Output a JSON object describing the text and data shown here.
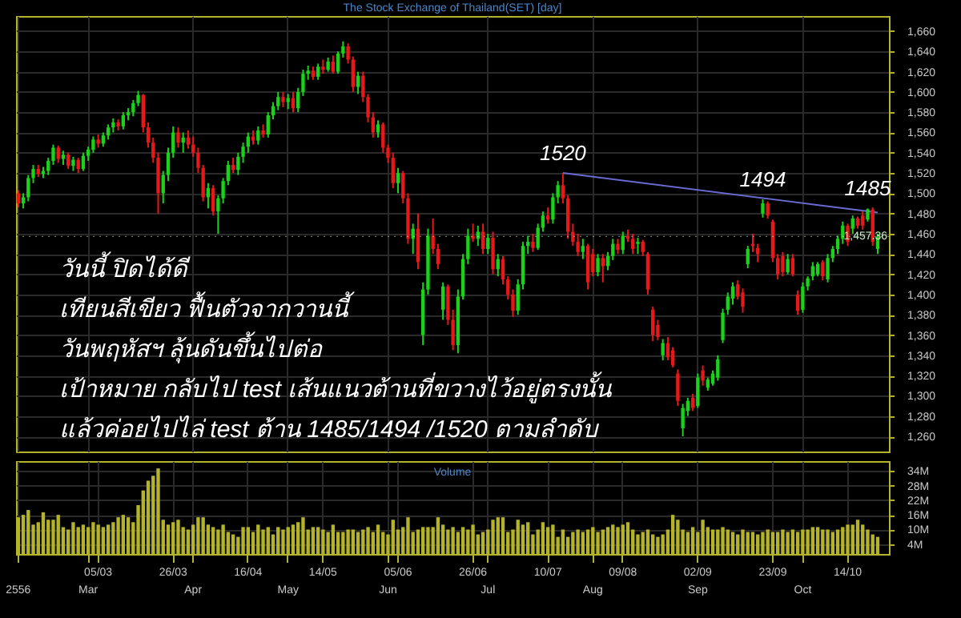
{
  "chart_data": [
    {
      "type": "candlestick",
      "title": "The Stock Exchange of Thailand(SET) [day]",
      "categories": [
        "2556",
        null,
        null,
        null,
        null,
        null,
        null,
        null,
        null,
        null,
        null,
        null,
        null,
        null,
        "Mar",
        null,
        null,
        null,
        null,
        null,
        null,
        null,
        null,
        null,
        null,
        null,
        null,
        null,
        null,
        null,
        null,
        null,
        null,
        null,
        null,
        "Apr",
        null,
        null,
        null,
        null,
        null,
        null,
        null,
        null,
        null,
        null,
        null,
        null,
        null,
        null,
        null,
        null,
        null,
        null,
        "May",
        null,
        null,
        null,
        null,
        null,
        null,
        null,
        null,
        null,
        null,
        null,
        null,
        null,
        null,
        null,
        null,
        null,
        null,
        null,
        "Jun",
        null,
        null,
        null,
        null,
        null,
        null,
        null,
        null,
        null,
        null,
        null,
        null,
        null,
        null,
        null,
        null,
        null,
        null,
        null,
        "Jul",
        null,
        null,
        null,
        null,
        null,
        null,
        null,
        null,
        null,
        null,
        null,
        null,
        null,
        null,
        null,
        null,
        null,
        null,
        null,
        null,
        "Aug",
        null,
        null,
        null,
        null,
        null,
        null,
        null,
        null,
        null,
        null,
        null,
        null,
        null,
        null,
        null,
        null,
        null,
        null,
        null,
        null,
        "Sep",
        null,
        null,
        null,
        null,
        null,
        null,
        null,
        null,
        null,
        null,
        null,
        null,
        null,
        null,
        null,
        null,
        null,
        null,
        null,
        null,
        "Oct",
        null,
        null,
        null,
        null,
        null,
        null,
        null,
        null,
        null,
        null,
        null,
        null,
        null,
        null,
        null
      ],
      "ohlc": [
        [
          1500,
          1503,
          1486,
          1490
        ],
        [
          1490,
          1500,
          1485,
          1496
        ],
        [
          1496,
          1518,
          1492,
          1515
        ],
        [
          1515,
          1528,
          1510,
          1524
        ],
        [
          1524,
          1528,
          1516,
          1519
        ],
        [
          1519,
          1526,
          1515,
          1522
        ],
        [
          1522,
          1535,
          1518,
          1532
        ],
        [
          1532,
          1548,
          1528,
          1545
        ],
        [
          1545,
          1547,
          1530,
          1534
        ],
        [
          1534,
          1542,
          1528,
          1538
        ],
        [
          1538,
          1540,
          1524,
          1527
        ],
        [
          1527,
          1536,
          1522,
          1533
        ],
        [
          1533,
          1535,
          1520,
          1524
        ],
        [
          1524,
          1540,
          1522,
          1537
        ],
        [
          1537,
          1546,
          1532,
          1543
        ],
        [
          1543,
          1556,
          1540,
          1553
        ],
        [
          1553,
          1558,
          1545,
          1549
        ],
        [
          1549,
          1560,
          1546,
          1557
        ],
        [
          1557,
          1568,
          1553,
          1565
        ],
        [
          1565,
          1574,
          1560,
          1570
        ],
        [
          1570,
          1573,
          1562,
          1566
        ],
        [
          1566,
          1580,
          1563,
          1577
        ],
        [
          1577,
          1584,
          1572,
          1580
        ],
        [
          1580,
          1592,
          1576,
          1589
        ],
        [
          1589,
          1601,
          1586,
          1597
        ],
        [
          1597,
          1598,
          1560,
          1565
        ],
        [
          1565,
          1570,
          1545,
          1550
        ],
        [
          1550,
          1555,
          1530,
          1535
        ],
        [
          1535,
          1540,
          1480,
          1500
        ],
        [
          1500,
          1522,
          1490,
          1518
        ],
        [
          1518,
          1545,
          1512,
          1540
        ],
        [
          1540,
          1566,
          1535,
          1560
        ],
        [
          1560,
          1565,
          1545,
          1550
        ],
        [
          1550,
          1560,
          1540,
          1555
        ],
        [
          1555,
          1562,
          1544,
          1548
        ],
        [
          1548,
          1556,
          1536,
          1540
        ],
        [
          1540,
          1545,
          1520,
          1525
        ],
        [
          1525,
          1528,
          1492,
          1496
        ],
        [
          1496,
          1510,
          1485,
          1505
        ],
        [
          1505,
          1508,
          1478,
          1482
        ],
        [
          1482,
          1498,
          1460,
          1495
        ],
        [
          1495,
          1515,
          1490,
          1512
        ],
        [
          1512,
          1532,
          1508,
          1528
        ],
        [
          1528,
          1535,
          1520,
          1523
        ],
        [
          1523,
          1540,
          1518,
          1536
        ],
        [
          1536,
          1550,
          1530,
          1546
        ],
        [
          1546,
          1560,
          1540,
          1556
        ],
        [
          1556,
          1562,
          1548,
          1552
        ],
        [
          1552,
          1566,
          1548,
          1562
        ],
        [
          1562,
          1568,
          1555,
          1558
        ],
        [
          1558,
          1580,
          1555,
          1577
        ],
        [
          1577,
          1590,
          1573,
          1586
        ],
        [
          1586,
          1600,
          1582,
          1595
        ],
        [
          1595,
          1600,
          1585,
          1590
        ],
        [
          1590,
          1598,
          1583,
          1594
        ],
        [
          1594,
          1600,
          1580,
          1584
        ],
        [
          1584,
          1604,
          1580,
          1600
        ],
        [
          1600,
          1622,
          1596,
          1618
        ],
        [
          1618,
          1626,
          1612,
          1621
        ],
        [
          1621,
          1625,
          1612,
          1615
        ],
        [
          1615,
          1628,
          1612,
          1625
        ],
        [
          1625,
          1632,
          1618,
          1622
        ],
        [
          1622,
          1634,
          1620,
          1630
        ],
        [
          1630,
          1636,
          1618,
          1620
        ],
        [
          1620,
          1640,
          1618,
          1638
        ],
        [
          1638,
          1650,
          1634,
          1645
        ],
        [
          1645,
          1648,
          1628,
          1632
        ],
        [
          1632,
          1635,
          1600,
          1605
        ],
        [
          1605,
          1620,
          1598,
          1616
        ],
        [
          1616,
          1620,
          1590,
          1595
        ],
        [
          1595,
          1598,
          1570,
          1575
        ],
        [
          1575,
          1580,
          1555,
          1560
        ],
        [
          1560,
          1572,
          1555,
          1568
        ],
        [
          1568,
          1570,
          1540,
          1545
        ],
        [
          1545,
          1548,
          1530,
          1535
        ],
        [
          1535,
          1540,
          1505,
          1510
        ],
        [
          1510,
          1525,
          1500,
          1520
        ],
        [
          1520,
          1522,
          1490,
          1495
        ],
        [
          1495,
          1500,
          1450,
          1455
        ],
        [
          1455,
          1470,
          1440,
          1465
        ],
        [
          1465,
          1480,
          1425,
          1432
        ],
        [
          1360,
          1412,
          1350,
          1405
        ],
        [
          1405,
          1465,
          1400,
          1458
        ],
        [
          1458,
          1475,
          1440,
          1445
        ],
        [
          1445,
          1450,
          1425,
          1430
        ],
        [
          1385,
          1412,
          1375,
          1408
        ],
        [
          1408,
          1410,
          1370,
          1375
        ],
        [
          1375,
          1385,
          1345,
          1350
        ],
        [
          1350,
          1405,
          1342,
          1398
        ],
        [
          1398,
          1440,
          1395,
          1435
        ],
        [
          1435,
          1465,
          1430,
          1458
        ],
        [
          1458,
          1470,
          1452,
          1455
        ],
        [
          1455,
          1468,
          1448,
          1462
        ],
        [
          1462,
          1470,
          1440,
          1445
        ],
        [
          1445,
          1460,
          1440,
          1456
        ],
        [
          1456,
          1462,
          1420,
          1425
        ],
        [
          1425,
          1440,
          1418,
          1435
        ],
        [
          1435,
          1438,
          1410,
          1415
        ],
        [
          1415,
          1418,
          1395,
          1400
        ],
        [
          1400,
          1405,
          1378,
          1384
        ],
        [
          1384,
          1415,
          1380,
          1410
        ],
        [
          1410,
          1452,
          1405,
          1448
        ],
        [
          1448,
          1458,
          1440,
          1452
        ],
        [
          1452,
          1460,
          1442,
          1446
        ],
        [
          1446,
          1470,
          1444,
          1466
        ],
        [
          1466,
          1482,
          1462,
          1478
        ],
        [
          1478,
          1486,
          1470,
          1474
        ],
        [
          1474,
          1500,
          1470,
          1496
        ],
        [
          1496,
          1512,
          1490,
          1508
        ],
        [
          1508,
          1520,
          1490,
          1495
        ],
        [
          1495,
          1498,
          1455,
          1462
        ],
        [
          1462,
          1470,
          1448,
          1452
        ],
        [
          1452,
          1460,
          1438,
          1442
        ],
        [
          1442,
          1455,
          1435,
          1448
        ],
        [
          1448,
          1450,
          1405,
          1412
        ],
        [
          1440,
          1445,
          1418,
          1422
        ],
        [
          1422,
          1440,
          1418,
          1436
        ],
        [
          1436,
          1440,
          1412,
          1428
        ],
        [
          1428,
          1442,
          1424,
          1438
        ],
        [
          1438,
          1455,
          1434,
          1450
        ],
        [
          1450,
          1455,
          1440,
          1444
        ],
        [
          1444,
          1462,
          1440,
          1458
        ],
        [
          1458,
          1464,
          1452,
          1455
        ],
        [
          1455,
          1460,
          1440,
          1445
        ],
        [
          1450,
          1456,
          1440,
          1452
        ],
        [
          1452,
          1454,
          1438,
          1442
        ],
        [
          1440,
          1442,
          1400,
          1405
        ],
        [
          1385,
          1388,
          1354,
          1360
        ],
        [
          1370,
          1375,
          1355,
          1358
        ],
        [
          1340,
          1356,
          1335,
          1352
        ],
        [
          1352,
          1358,
          1335,
          1338
        ],
        [
          1345,
          1348,
          1328,
          1330
        ],
        [
          1322,
          1326,
          1290,
          1295
        ],
        [
          1268,
          1292,
          1260,
          1288
        ],
        [
          1285,
          1298,
          1280,
          1295
        ],
        [
          1298,
          1302,
          1285,
          1288
        ],
        [
          1290,
          1322,
          1288,
          1318
        ],
        [
          1325,
          1330,
          1310,
          1315
        ],
        [
          1308,
          1318,
          1305,
          1316
        ],
        [
          1312,
          1325,
          1310,
          1322
        ],
        [
          1318,
          1340,
          1315,
          1336
        ],
        [
          1355,
          1386,
          1352,
          1382
        ],
        [
          1385,
          1402,
          1380,
          1398
        ],
        [
          1396,
          1412,
          1390,
          1408
        ],
        [
          1410,
          1414,
          1395,
          1398
        ],
        [
          1402,
          1406,
          1382,
          1388
        ],
        [
          1430,
          1448,
          1426,
          1445
        ],
        [
          1450,
          1460,
          1442,
          1448
        ],
        [
          1446,
          1450,
          1432,
          1440
        ],
        [
          1480,
          1494,
          1476,
          1490
        ],
        [
          1490,
          1492,
          1475,
          1478
        ],
        [
          1472,
          1474,
          1432,
          1436
        ],
        [
          1436,
          1440,
          1415,
          1420
        ],
        [
          1438,
          1442,
          1418,
          1422
        ],
        [
          1422,
          1440,
          1420,
          1435
        ],
        [
          1436,
          1440,
          1418,
          1420
        ],
        [
          1400,
          1404,
          1380,
          1384
        ],
        [
          1385,
          1412,
          1382,
          1408
        ],
        [
          1408,
          1418,
          1404,
          1416
        ],
        [
          1418,
          1432,
          1414,
          1428
        ],
        [
          1420,
          1432,
          1418,
          1430
        ],
        [
          1432,
          1434,
          1414,
          1418
        ],
        [
          1415,
          1440,
          1412,
          1436
        ],
        [
          1436,
          1448,
          1432,
          1445
        ],
        [
          1445,
          1458,
          1440,
          1455
        ],
        [
          1455,
          1472,
          1450,
          1468
        ],
        [
          1468,
          1470,
          1448,
          1452
        ],
        [
          1465,
          1478,
          1460,
          1475
        ],
        [
          1475,
          1477,
          1465,
          1468
        ],
        [
          1478,
          1482,
          1464,
          1468
        ],
        [
          1474,
          1485,
          1472,
          1484
        ],
        [
          1484,
          1486,
          1448,
          1452
        ],
        [
          1445,
          1460,
          1440,
          1457.36
        ]
      ],
      "series": [
        {
          "type": "line",
          "color": "#6a6ad0",
          "values": [
            null,
            null,
            null,
            null,
            null,
            null,
            null,
            null,
            null,
            null,
            null,
            null,
            null,
            null,
            null,
            null,
            null,
            null,
            null,
            null,
            null,
            null,
            null,
            null,
            null,
            null,
            null,
            null,
            null,
            null,
            null,
            null,
            null,
            null,
            null,
            null,
            null,
            null,
            null,
            null,
            null,
            null,
            null,
            null,
            null,
            null,
            null,
            null,
            null,
            null,
            null,
            null,
            null,
            null,
            null,
            null,
            null,
            null,
            null,
            null,
            null,
            null,
            null,
            null,
            null,
            null,
            null,
            null,
            null,
            null,
            null,
            null,
            null,
            null,
            null,
            null,
            null,
            null,
            null,
            null,
            null,
            null,
            null,
            null,
            null,
            null,
            null,
            null,
            null,
            null,
            null,
            null,
            null,
            null,
            null,
            null,
            null,
            null,
            null,
            null,
            null,
            null,
            null,
            null,
            null,
            null,
            null,
            null,
            null,
            1520,
            null,
            null,
            null,
            null,
            null,
            null,
            null,
            null,
            null,
            null,
            null,
            null,
            null,
            null,
            null,
            null,
            null,
            null,
            null,
            null,
            null,
            null,
            null,
            null,
            null,
            null,
            null,
            null,
            null,
            null,
            null,
            null,
            null,
            null,
            null,
            null,
            null,
            null,
            null,
            null,
            null,
            null,
            null,
            null,
            null,
            null,
            null,
            null,
            null,
            null,
            null,
            null,
            null,
            null,
            null,
            null,
            null,
            null,
            null,
            null,
            null,
            null,
            1481
          ]
        }
      ],
      "ylim": [
        1245,
        1675
      ],
      "yticks": [
        {
          "value": 1260,
          "label": "1,260"
        },
        {
          "value": 1280,
          "label": "1,280"
        },
        {
          "value": 1300,
          "label": "1,300"
        },
        {
          "value": 1320,
          "label": "1,320"
        },
        {
          "value": 1340,
          "label": "1,340"
        },
        {
          "value": 1360,
          "label": "1,360"
        },
        {
          "value": 1380,
          "label": "1,380"
        },
        {
          "value": 1400,
          "label": "1,400"
        },
        {
          "value": 1420,
          "label": "1,420"
        },
        {
          "value": 1440,
          "label": "1,440"
        },
        {
          "value": 1460,
          "label": "1,460"
        },
        {
          "value": 1480,
          "label": "1,480"
        },
        {
          "value": 1500,
          "label": "1,500"
        },
        {
          "value": 1520,
          "label": "1,520"
        },
        {
          "value": 1540,
          "label": "1,540"
        },
        {
          "value": 1560,
          "label": "1,560"
        },
        {
          "value": 1580,
          "label": "1,580"
        },
        {
          "value": 1600,
          "label": "1,600"
        },
        {
          "value": 1620,
          "label": "1,620"
        },
        {
          "value": 1640,
          "label": "1,640"
        },
        {
          "value": 1660,
          "label": "1,660"
        }
      ],
      "ref_lines": [
        {
          "axis": "y",
          "value": 1457.36,
          "label": "1,457.36",
          "color": "#c8f0c8"
        }
      ],
      "grid": true,
      "tick_labels": "y",
      "annotations": [
        "วันนี้ ปิดได้ดี",
        "เทียนสีเขียว ฟื้นตัวจากวานนี้",
        "วันพฤหัสฯ ลุ้นดันขึ้นไปต่อ",
        "เป้าหมาย กลับไป test เส้นแนวต้านที่ขวางไว้อยู่ตรงนั้น",
        "แล้วค่อยไปไล่ test ต้าน 1485/1494 /1520 ตามลำดับ",
        {
          "text": "1520",
          "y": 1520
        },
        {
          "text": "1494",
          "y": 1494
        },
        {
          "text": "1485",
          "y": 1485
        }
      ]
    },
    {
      "type": "bar",
      "title": "Volume",
      "color": "#b4b42c",
      "categories": [
        null,
        null,
        null,
        null,
        null,
        null,
        null,
        null,
        null,
        null,
        null,
        null,
        null,
        null,
        null,
        null,
        "05/03",
        null,
        null,
        null,
        null,
        null,
        null,
        null,
        null,
        null,
        null,
        null,
        null,
        null,
        null,
        "26/03",
        null,
        null,
        null,
        null,
        null,
        null,
        null,
        null,
        null,
        null,
        null,
        null,
        null,
        null,
        "16/04",
        null,
        null,
        null,
        null,
        null,
        null,
        null,
        null,
        null,
        null,
        null,
        null,
        null,
        null,
        "14/05",
        null,
        null,
        null,
        null,
        null,
        null,
        null,
        null,
        null,
        null,
        null,
        null,
        null,
        null,
        "05/06",
        null,
        null,
        null,
        null,
        null,
        null,
        null,
        null,
        null,
        null,
        null,
        null,
        null,
        null,
        "26/06",
        null,
        null,
        null,
        null,
        null,
        null,
        null,
        null,
        null,
        null,
        null,
        null,
        null,
        null,
        "10/07",
        null,
        null,
        null,
        null,
        null,
        null,
        null,
        null,
        null,
        null,
        null,
        null,
        null,
        null,
        "09/08",
        null,
        null,
        null,
        null,
        null,
        null,
        null,
        null,
        null,
        null,
        null,
        null,
        null,
        null,
        "02/09",
        null,
        null,
        null,
        null,
        null,
        null,
        null,
        null,
        null,
        null,
        null,
        null,
        null,
        null,
        "23/09",
        null,
        null,
        null,
        null,
        null,
        null,
        null,
        null,
        null,
        null,
        null,
        null,
        null,
        null,
        "14/10",
        null,
        null,
        null,
        null,
        null,
        null
      ],
      "values": [
        15,
        16,
        18,
        12,
        13,
        17,
        14,
        14,
        16,
        11,
        10,
        13,
        11,
        12,
        11,
        13,
        12,
        11,
        12,
        13,
        15,
        16,
        15,
        13,
        20,
        26,
        30,
        32,
        35,
        14,
        12,
        13,
        14,
        11,
        10,
        12,
        15,
        15,
        12,
        11,
        10,
        12,
        9,
        8,
        7,
        11,
        11,
        9,
        12,
        10,
        11,
        8,
        11,
        10,
        11,
        12,
        13,
        15,
        10,
        11,
        11,
        10,
        9,
        12,
        9,
        9,
        10,
        10,
        9,
        10,
        11,
        9,
        12,
        9,
        8,
        14,
        10,
        11,
        15,
        9,
        10,
        11,
        11,
        11,
        15,
        12,
        10,
        11,
        9,
        11,
        10,
        12,
        8,
        9,
        10,
        14,
        15,
        15,
        9,
        10,
        14,
        12,
        13,
        8,
        10,
        13,
        11,
        12,
        7,
        10,
        7,
        9,
        10,
        9,
        10,
        11,
        9,
        10,
        11,
        12,
        11,
        12,
        13,
        10,
        8,
        9,
        10,
        8,
        7,
        8,
        10,
        16,
        14,
        10,
        9,
        11,
        9,
        14,
        11,
        10,
        10,
        11,
        10,
        9,
        8,
        10,
        9,
        9,
        8,
        9,
        10,
        9,
        9,
        10,
        9,
        10,
        9,
        10,
        10,
        11,
        11,
        10,
        10,
        9,
        10,
        11,
        12,
        12,
        14,
        12,
        10,
        8,
        7
      ],
      "ylim": [
        0,
        38
      ],
      "yticks": [
        {
          "value": 4,
          "label": "4M"
        },
        {
          "value": 10,
          "label": "10M"
        },
        {
          "value": 16,
          "label": "16M"
        },
        {
          "value": 22,
          "label": "22M"
        },
        {
          "value": 28,
          "label": "28M"
        },
        {
          "value": 34,
          "label": "34M"
        }
      ],
      "grid": true
    }
  ]
}
